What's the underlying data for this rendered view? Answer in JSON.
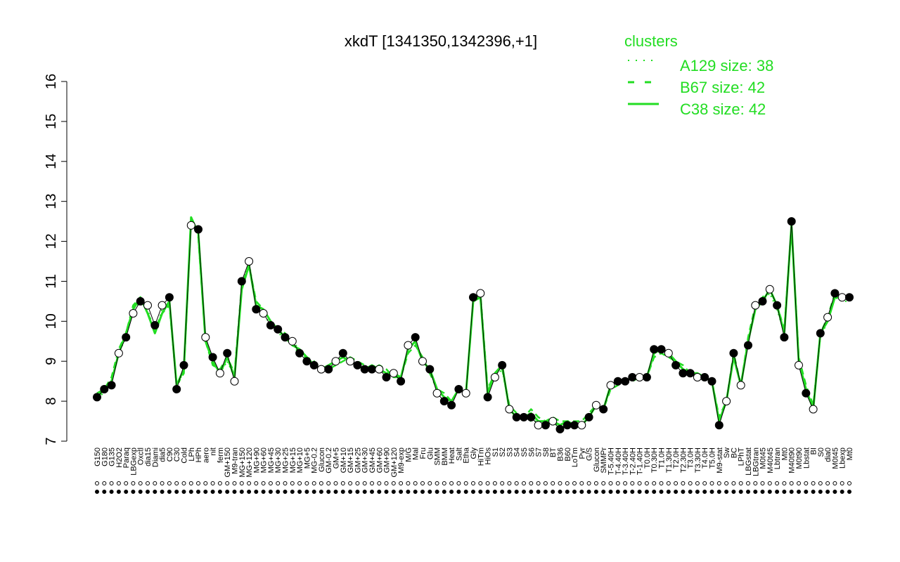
{
  "chart_data": {
    "type": "line",
    "title": "xkdT [1341350,1342396,+1]",
    "xlabel": "",
    "ylabel": "",
    "ylim": [
      7,
      16
    ],
    "yticks": [
      7,
      8,
      9,
      10,
      11,
      12,
      13,
      14,
      15,
      16
    ],
    "legend": {
      "title": "clusters",
      "placement": "top-right",
      "entries": [
        {
          "label": "A129 size: 38",
          "style": "dotted"
        },
        {
          "label": "B67 size: 42",
          "style": "dashed"
        },
        {
          "label": "C38 size: 42",
          "style": "solid"
        }
      ]
    },
    "x_labels": [
      "G150",
      "G180",
      "G135",
      "H2O2",
      "Paraq",
      "LBGexp",
      "Oxctl",
      "dia15",
      "Diami",
      "dia5",
      "C90",
      "C30",
      "Cold",
      "LPh",
      "HPh",
      "aero",
      "nit",
      "ferm",
      "GM+150",
      "M9-tran",
      "MG+150",
      "MG+120",
      "MG+90",
      "MG+60",
      "MG+45",
      "MG+30",
      "MG+25",
      "MG+15",
      "MG+10",
      "MG+5",
      "MG-0.2",
      "Glucon",
      "GM-0.2",
      "GM+5",
      "GM+10",
      "GM+15",
      "GM+25",
      "GM+30",
      "GM+45",
      "GM+60",
      "GM+90",
      "GM+120",
      "M9-exp",
      "M/G",
      "Mal",
      "Fru",
      "Glu",
      "SMM",
      "BMM",
      "Heat",
      "Salt",
      "Etha",
      "Gly",
      "HiTm",
      "HiOs",
      "S1",
      "S2",
      "S3",
      "S4",
      "S5",
      "S6",
      "S7",
      "S8",
      "BT",
      "B36",
      "B60",
      "LoTm",
      "Pyr",
      "G/S",
      "Glucon",
      "SMMPr",
      "T-5.40H",
      "T-4.40H",
      "T-3.40H",
      "T-2.40H",
      "T-1.40H",
      "T0.0H",
      "T0.30H",
      "T1.0H",
      "T1.30H",
      "T2.0H",
      "T2.30H",
      "T3.0H",
      "T3.30H",
      "T4.0H",
      "T5.0H",
      "M9-stat",
      "Sw",
      "BC",
      "LPhT",
      "LBGstat",
      "LBGtran",
      "M0t45",
      "M40t45",
      "Lbtran",
      "Mt0",
      "M40t90",
      "M0t90",
      "Lbstat",
      "BI",
      "S0",
      "dia0",
      "M0t45",
      "Lbexp",
      "Mt0"
    ],
    "series": [
      {
        "name": "A129 size: 38",
        "style": "dotted",
        "values": [
          8.1,
          8.2,
          8.5,
          9.2,
          9.6,
          10.3,
          10.5,
          10.3,
          9.7,
          10.3,
          10.5,
          8.3,
          8.8,
          12.5,
          12.3,
          9.6,
          9.0,
          8.7,
          9.0,
          8.6,
          10.8,
          11.5,
          10.4,
          10.2,
          9.9,
          9.7,
          9.6,
          9.5,
          9.3,
          9.0,
          8.9,
          8.8,
          8.9,
          9.0,
          9.1,
          9.0,
          8.9,
          8.8,
          8.9,
          8.8,
          8.7,
          8.7,
          8.6,
          9.3,
          9.5,
          9.0,
          8.8,
          8.3,
          8.1,
          8.0,
          8.3,
          8.2,
          10.5,
          10.6,
          8.2,
          8.6,
          8.8,
          7.8,
          7.6,
          7.6,
          7.5,
          7.5,
          7.4,
          7.5,
          7.3,
          7.4,
          7.4,
          7.4,
          7.6,
          7.9,
          7.8,
          8.4,
          8.5,
          8.5,
          8.6,
          8.6,
          8.6,
          9.2,
          9.3,
          9.2,
          9.0,
          8.8,
          8.7,
          8.6,
          8.6,
          8.5,
          7.5,
          8.0,
          9.1,
          8.4,
          9.5,
          10.3,
          10.5,
          10.7,
          10.3,
          9.7,
          12.3,
          9.0,
          8.3,
          7.8,
          9.6,
          10.0,
          10.6,
          10.5,
          10.5
        ]
      },
      {
        "name": "B67 size: 42",
        "style": "dashed",
        "values": [
          8.2,
          8.3,
          8.6,
          9.3,
          9.7,
          10.4,
          10.6,
          10.2,
          9.8,
          10.2,
          10.4,
          8.4,
          8.7,
          12.6,
          12.1,
          9.5,
          8.9,
          8.8,
          9.1,
          8.7,
          10.9,
          11.4,
          10.5,
          10.3,
          10.0,
          9.8,
          9.7,
          9.4,
          9.2,
          9.1,
          9.0,
          8.8,
          8.8,
          8.9,
          9.0,
          9.1,
          9.0,
          8.9,
          8.8,
          8.9,
          8.8,
          8.6,
          8.6,
          9.2,
          9.4,
          9.1,
          8.7,
          8.3,
          8.2,
          8.0,
          8.3,
          8.2,
          10.5,
          10.7,
          8.3,
          8.7,
          8.8,
          7.9,
          7.7,
          7.6,
          7.8,
          7.6,
          7.5,
          7.6,
          7.5,
          7.5,
          7.5,
          7.5,
          7.7,
          7.9,
          7.8,
          8.3,
          8.4,
          8.5,
          8.5,
          8.6,
          8.6,
          9.1,
          9.2,
          9.1,
          9.0,
          8.9,
          8.7,
          8.7,
          8.6,
          8.5,
          7.6,
          8.0,
          9.2,
          8.4,
          9.6,
          10.4,
          10.6,
          10.8,
          10.4,
          9.8,
          12.4,
          9.1,
          8.4,
          7.9,
          9.7,
          10.1,
          10.7,
          10.6,
          10.6
        ]
      },
      {
        "name": "C38 size: 42",
        "style": "solid",
        "values": [
          8.1,
          8.3,
          8.5,
          9.2,
          9.7,
          10.3,
          10.6,
          10.2,
          9.7,
          10.2,
          10.5,
          8.4,
          8.8,
          12.6,
          12.2,
          9.5,
          9.0,
          8.7,
          9.1,
          8.6,
          10.8,
          11.4,
          10.4,
          10.3,
          10.0,
          9.8,
          9.6,
          9.4,
          9.3,
          9.1,
          8.9,
          8.8,
          8.9,
          9.0,
          9.1,
          9.0,
          8.9,
          8.8,
          8.9,
          8.8,
          8.7,
          8.7,
          8.6,
          9.3,
          9.5,
          9.0,
          8.8,
          8.3,
          8.1,
          8.0,
          8.3,
          8.2,
          10.5,
          10.6,
          8.2,
          8.7,
          8.9,
          7.8,
          7.6,
          7.6,
          7.7,
          7.5,
          7.5,
          7.5,
          7.4,
          7.5,
          7.4,
          7.4,
          7.6,
          7.9,
          7.8,
          8.4,
          8.5,
          8.5,
          8.6,
          8.6,
          8.6,
          9.2,
          9.3,
          9.2,
          9.0,
          8.8,
          8.7,
          8.7,
          8.6,
          8.5,
          7.5,
          8.0,
          9.1,
          8.4,
          9.5,
          10.3,
          10.5,
          10.8,
          10.4,
          9.7,
          12.4,
          9.0,
          8.3,
          7.8,
          9.7,
          10.0,
          10.6,
          10.6,
          10.6
        ]
      }
    ],
    "points": [
      8.1,
      8.3,
      8.4,
      9.2,
      9.6,
      10.2,
      10.5,
      10.4,
      9.9,
      10.4,
      10.6,
      8.3,
      8.9,
      12.4,
      12.3,
      9.6,
      9.1,
      8.7,
      9.2,
      8.5,
      11.0,
      11.5,
      10.3,
      10.2,
      9.9,
      9.8,
      9.6,
      9.5,
      9.2,
      9.0,
      8.9,
      8.8,
      8.8,
      9.0,
      9.2,
      9.0,
      8.9,
      8.8,
      8.8,
      8.8,
      8.6,
      8.7,
      8.5,
      9.4,
      9.6,
      9.0,
      8.8,
      8.2,
      8.0,
      7.9,
      8.3,
      8.2,
      10.6,
      10.7,
      8.1,
      8.6,
      8.9,
      7.8,
      7.6,
      7.6,
      7.6,
      7.4,
      7.4,
      7.5,
      7.3,
      7.4,
      7.4,
      7.4,
      7.6,
      7.9,
      7.8,
      8.4,
      8.5,
      8.5,
      8.6,
      8.6,
      8.6,
      9.3,
      9.3,
      9.2,
      8.9,
      8.7,
      8.7,
      8.6,
      8.6,
      8.5,
      7.4,
      8.0,
      9.2,
      8.4,
      9.4,
      10.4,
      10.5,
      10.8,
      10.4,
      9.6,
      12.5,
      8.9,
      8.2,
      7.8,
      9.7,
      10.1,
      10.7,
      10.6,
      10.6
    ],
    "open_marker_indices": [
      3,
      5,
      7,
      9,
      13,
      15,
      17,
      19,
      21,
      23,
      27,
      31,
      33,
      35,
      39,
      41,
      43,
      45,
      47,
      51,
      53,
      55,
      57,
      61,
      63,
      67,
      69,
      71,
      75,
      79,
      83,
      87,
      89,
      91,
      93,
      97,
      99,
      101,
      103
    ],
    "colors": {
      "line": "#22dd22",
      "axis": "#000000",
      "legend": "#22dd22"
    },
    "grid": false
  }
}
